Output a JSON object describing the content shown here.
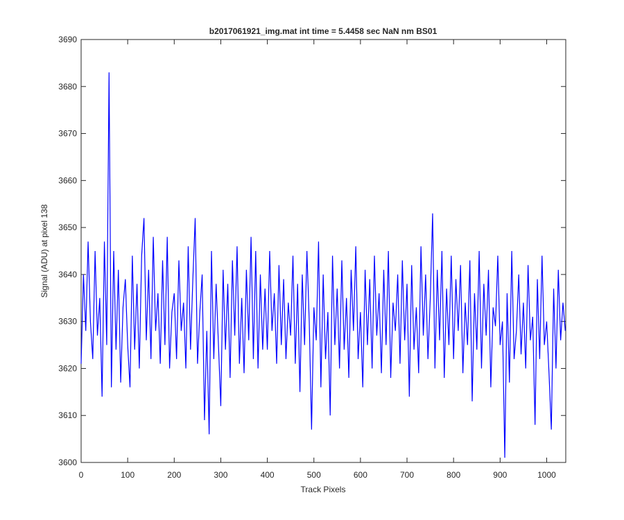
{
  "chart_data": {
    "type": "line",
    "title": "b2017061921_img.mat int time = 5.4458 sec  NaN nm BS01",
    "xlabel": "Track Pixels",
    "ylabel": "Signal (ADU) at pixel 138",
    "x": [
      0,
      5,
      10,
      15,
      20,
      25,
      30,
      35,
      40,
      45,
      50,
      55,
      60,
      65,
      70,
      75,
      80,
      85,
      90,
      95,
      100,
      105,
      110,
      115,
      120,
      125,
      130,
      135,
      140,
      145,
      150,
      155,
      160,
      165,
      170,
      175,
      180,
      185,
      190,
      195,
      200,
      205,
      210,
      215,
      220,
      225,
      230,
      235,
      240,
      245,
      250,
      255,
      260,
      265,
      270,
      275,
      280,
      285,
      290,
      295,
      300,
      305,
      310,
      315,
      320,
      325,
      330,
      335,
      340,
      345,
      350,
      355,
      360,
      365,
      370,
      375,
      380,
      385,
      390,
      395,
      400,
      405,
      410,
      415,
      420,
      425,
      430,
      435,
      440,
      445,
      450,
      455,
      460,
      465,
      470,
      475,
      480,
      485,
      490,
      495,
      500,
      505,
      510,
      515,
      520,
      525,
      530,
      535,
      540,
      545,
      550,
      555,
      560,
      565,
      570,
      575,
      580,
      585,
      590,
      595,
      600,
      605,
      610,
      615,
      620,
      625,
      630,
      635,
      640,
      645,
      650,
      655,
      660,
      665,
      670,
      675,
      680,
      685,
      690,
      695,
      700,
      705,
      710,
      715,
      720,
      725,
      730,
      735,
      740,
      745,
      750,
      755,
      760,
      765,
      770,
      775,
      780,
      785,
      790,
      795,
      800,
      805,
      810,
      815,
      820,
      825,
      830,
      835,
      840,
      845,
      850,
      855,
      860,
      865,
      870,
      875,
      880,
      885,
      890,
      895,
      900,
      905,
      910,
      915,
      920,
      925,
      930,
      935,
      940,
      945,
      950,
      955,
      960,
      965,
      970,
      975,
      980,
      985,
      990,
      995,
      1000,
      1005,
      1010,
      1015,
      1020,
      1025,
      1030,
      1035,
      1040
    ],
    "series": [
      {
        "color": "#0000ff",
        "values": [
          3621,
          3640,
          3628,
          3647,
          3630,
          3622,
          3645,
          3627,
          3635,
          3614,
          3647,
          3625,
          3683,
          3616,
          3645,
          3624,
          3641,
          3617,
          3633,
          3639,
          3625,
          3616,
          3644,
          3624,
          3638,
          3620,
          3644,
          3652,
          3626,
          3641,
          3622,
          3648,
          3628,
          3636,
          3621,
          3643,
          3625,
          3648,
          3620,
          3632,
          3636,
          3622,
          3643,
          3628,
          3634,
          3620,
          3646,
          3624,
          3639,
          3652,
          3621,
          3632,
          3640,
          3609,
          3628,
          3606,
          3645,
          3622,
          3638,
          3625,
          3612,
          3641,
          3624,
          3638,
          3618,
          3643,
          3627,
          3646,
          3621,
          3635,
          3619,
          3641,
          3626,
          3648,
          3622,
          3645,
          3620,
          3640,
          3624,
          3637,
          3624,
          3645,
          3628,
          3636,
          3621,
          3642,
          3625,
          3639,
          3622,
          3634,
          3627,
          3644,
          3621,
          3638,
          3615,
          3640,
          3625,
          3645,
          3630,
          3607,
          3633,
          3626,
          3647,
          3616,
          3640,
          3622,
          3632,
          3610,
          3644,
          3625,
          3637,
          3620,
          3643,
          3624,
          3635,
          3618,
          3641,
          3628,
          3646,
          3622,
          3632,
          3616,
          3641,
          3625,
          3639,
          3620,
          3644,
          3627,
          3636,
          3619,
          3641,
          3625,
          3645,
          3618,
          3634,
          3628,
          3640,
          3621,
          3643,
          3626,
          3638,
          3614,
          3642,
          3624,
          3633,
          3619,
          3646,
          3627,
          3640,
          3622,
          3635,
          3653,
          3620,
          3641,
          3626,
          3645,
          3618,
          3637,
          3625,
          3644,
          3622,
          3639,
          3628,
          3642,
          3619,
          3634,
          3625,
          3643,
          3613,
          3636,
          3624,
          3645,
          3620,
          3638,
          3627,
          3641,
          3616,
          3633,
          3629,
          3644,
          3625,
          3630,
          3601,
          3636,
          3617,
          3645,
          3622,
          3628,
          3640,
          3623,
          3634,
          3620,
          3642,
          3626,
          3631,
          3608,
          3639,
          3622,
          3644,
          3625,
          3630,
          3619,
          3607,
          3637,
          3620,
          3641,
          3626,
          3634,
          3628
        ]
      }
    ],
    "xlim": [
      0,
      1041
    ],
    "ylim": [
      3600,
      3690
    ],
    "xticks": [
      0,
      100,
      200,
      300,
      400,
      500,
      600,
      700,
      800,
      900,
      1000
    ],
    "yticks": [
      3600,
      3610,
      3620,
      3630,
      3640,
      3650,
      3660,
      3670,
      3680,
      3690
    ]
  }
}
